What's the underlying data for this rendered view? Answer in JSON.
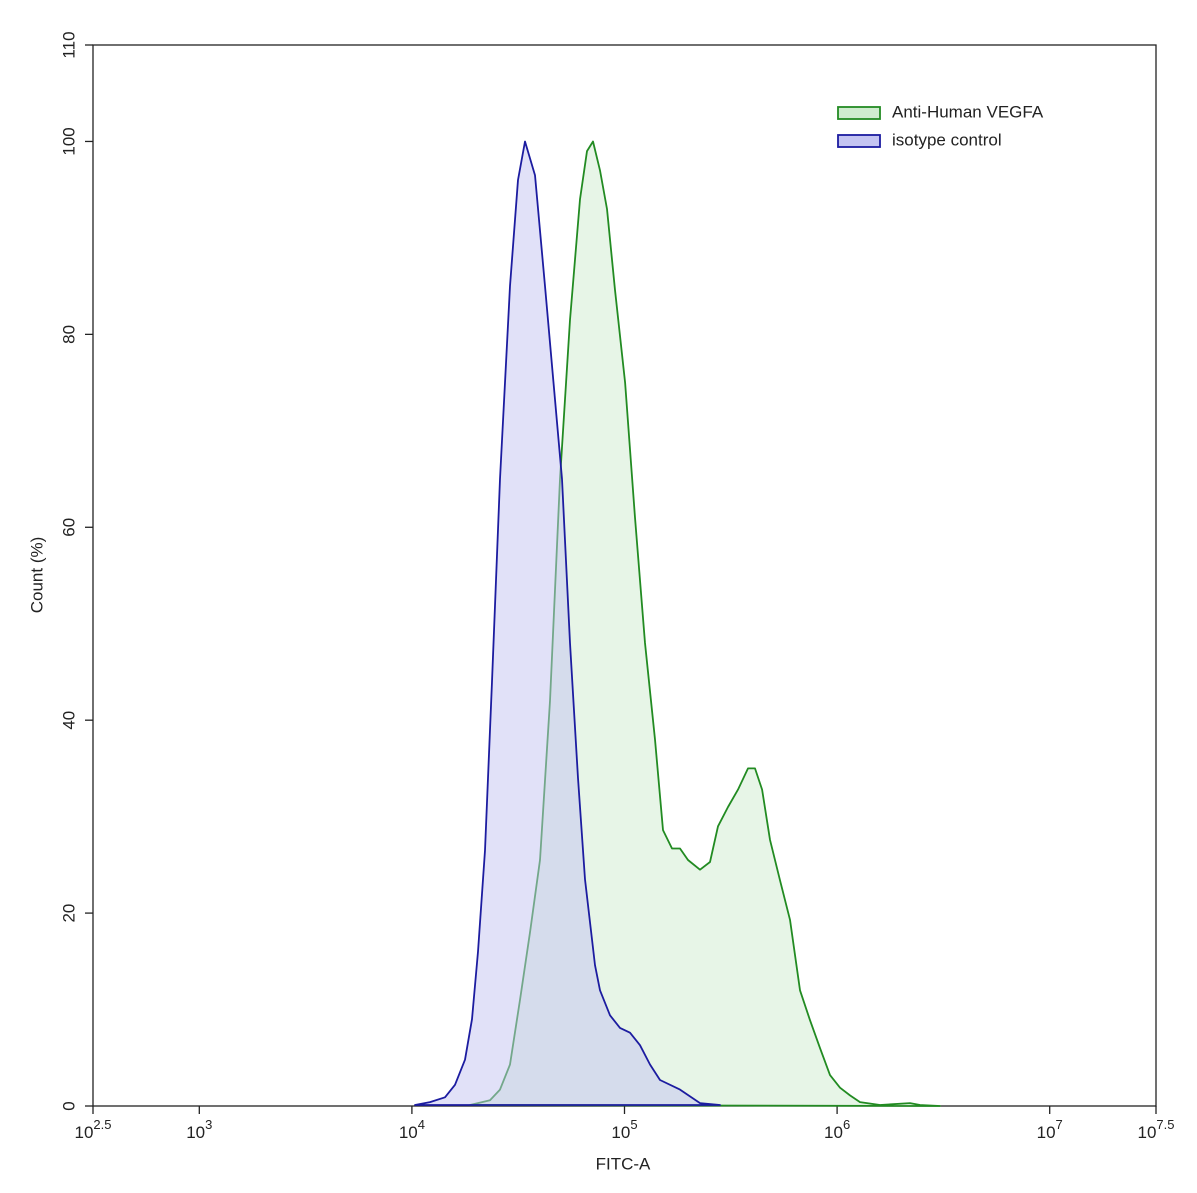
{
  "chart_data": {
    "type": "histogram-overlay",
    "xlabel": "FITC-A",
    "ylabel": "Count (%)",
    "xscale": "log",
    "xlim": [
      316.227766,
      31622776.6
    ],
    "xticks": [
      {
        "value": 316.227766,
        "label": "10",
        "sup": "2.5"
      },
      {
        "value": 1000,
        "label": "10",
        "sup": "3"
      },
      {
        "value": 10000,
        "label": "10",
        "sup": "4"
      },
      {
        "value": 100000,
        "label": "10",
        "sup": "5"
      },
      {
        "value": 1000000,
        "label": "10",
        "sup": "6"
      },
      {
        "value": 10000000,
        "label": "10",
        "sup": "7"
      },
      {
        "value": 31622776.6,
        "label": "10",
        "sup": "7.5"
      }
    ],
    "ylim": [
      0,
      110
    ],
    "yticks": [
      0,
      20,
      40,
      60,
      80,
      100,
      110
    ],
    "legend": "top-right",
    "series": [
      {
        "name": "Anti-Human VEGFA",
        "color": "#228b22",
        "fill": "#cfeccf",
        "x": [
          18760,
          23300,
          25970,
          28930,
          32250,
          35940,
          40050,
          44630,
          49740,
          55420,
          61750,
          66610,
          71090,
          76700,
          82760,
          90210,
          100600,
          112000,
          124900,
          139200,
          151800,
          167300,
          182400,
          199000,
          226500,
          252500,
          275300,
          306800,
          341900,
          381000,
          411100,
          443600,
          483600,
          538900,
          600500,
          669100,
          745600,
          830900,
          925900,
          1031800,
          1150000,
          1281000,
          1592000,
          2203000,
          2455000,
          3048000
        ],
        "values": [
          0.1,
          0.6,
          1.7,
          4.3,
          11,
          18,
          25.5,
          42,
          65,
          81.5,
          94,
          99,
          100,
          97,
          93,
          84.6,
          75,
          61,
          48,
          38,
          28.6,
          26.7,
          26.7,
          25.5,
          24.5,
          25.3,
          29,
          31,
          32.8,
          35,
          35,
          32.8,
          27.6,
          23.4,
          19.3,
          12,
          8.9,
          6,
          3.2,
          1.9,
          1.1,
          0.4,
          0.1,
          0.3,
          0.1,
          0
        ]
      },
      {
        "name": "isotype control",
        "color": "#1c1ca0",
        "fill": "#c4c4f2",
        "x": [
          10340,
          12160,
          14310,
          15950,
          17780,
          19180,
          20460,
          22070,
          23810,
          25970,
          28930,
          31560,
          34040,
          37940,
          42280,
          50820,
          55420,
          60430,
          65190,
          72640,
          76700,
          85480,
          95240,
          106100,
          118300,
          131800,
          146900,
          182400,
          226500,
          281300
        ],
        "values": [
          0.1,
          0.4,
          0.9,
          2.2,
          4.8,
          9,
          16,
          26.5,
          44,
          65,
          85,
          96,
          100,
          96.5,
          85,
          65,
          48,
          34,
          23.5,
          14.6,
          12,
          9.4,
          8.1,
          7.6,
          6.3,
          4.3,
          2.7,
          1.7,
          0.3,
          0.1
        ]
      }
    ]
  }
}
